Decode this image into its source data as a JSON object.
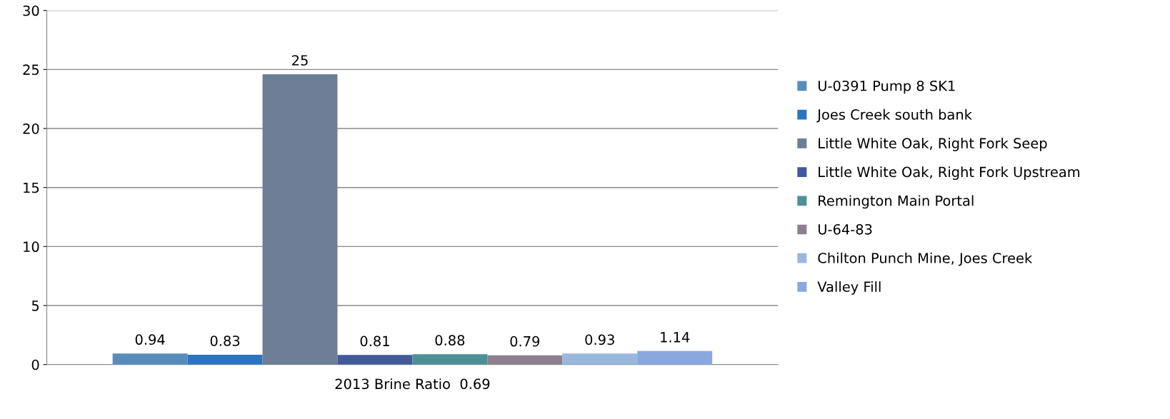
{
  "chart_data": {
    "type": "bar",
    "categories": [
      "2013 Brine Ratio  0.69"
    ],
    "series": [
      {
        "name": "U-0391 Pump 8 SK1",
        "color": "#588cbc",
        "values": [
          0.94
        ],
        "value_labels": [
          "0.94"
        ]
      },
      {
        "name": "Joes Creek south bank",
        "color": "#2a74c4",
        "values": [
          0.83
        ],
        "value_labels": [
          "0.83"
        ]
      },
      {
        "name": "Little White Oak, Right Fork Seep",
        "color": "#6e7e96",
        "values": [
          24.6
        ],
        "value_labels": [
          "25"
        ]
      },
      {
        "name": "Little White Oak, Right Fork Upstream",
        "color": "#425a9c",
        "values": [
          0.81
        ],
        "value_labels": [
          "0.81"
        ]
      },
      {
        "name": "Remington Main Portal",
        "color": "#4c9096",
        "values": [
          0.88
        ],
        "value_labels": [
          "0.88"
        ]
      },
      {
        "name": "U-64-83",
        "color": "#8c808e",
        "values": [
          0.79
        ],
        "value_labels": [
          "0.79"
        ]
      },
      {
        "name": "Chilton Punch Mine, Joes Creek",
        "color": "#98b8de",
        "values": [
          0.93
        ],
        "value_labels": [
          "0.93"
        ]
      },
      {
        "name": "Valley Fill",
        "color": "#88a8de",
        "values": [
          1.14
        ],
        "value_labels": [
          "1.14"
        ]
      }
    ],
    "ylim": [
      0,
      30
    ],
    "yticks": [
      0,
      5,
      10,
      15,
      20,
      25,
      30
    ],
    "grid": "y",
    "legend": "right"
  }
}
